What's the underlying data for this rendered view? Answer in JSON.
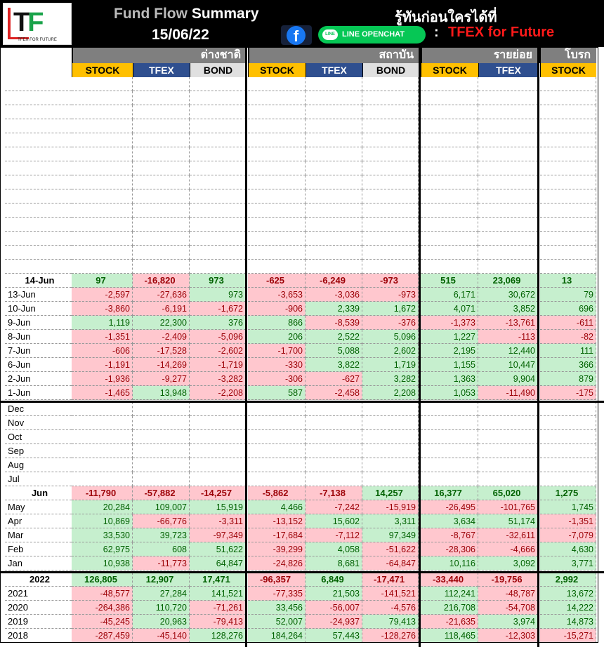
{
  "header": {
    "title_grey": "Fund Flow",
    "title_white": "Summary",
    "date": "15/06/22",
    "tagline": "รู้ทันก่อนใครได้ที่",
    "line_label": "LINE OPENCHAT",
    "colon": ":",
    "tfex_label": "TFEX for Future",
    "logo_text_t": "T",
    "logo_text_f": "F",
    "logo_tag": "TFEX FOR FUTURE",
    "fb_glyph": "f",
    "line_glyph": "LINE"
  },
  "groups": [
    "ต่างชาติ",
    "สถาบัน",
    "รายย่อย",
    "โบรก"
  ],
  "subheaders": [
    "STOCK",
    "TFEX",
    "BOND",
    "STOCK",
    "TFEX",
    "BOND",
    "STOCK",
    "TFEX",
    "STOCK"
  ],
  "blank_rows_top": 14,
  "daily_summary": {
    "label": "14-Jun",
    "values": [
      97,
      -16820,
      973,
      -625,
      -6249,
      -973,
      515,
      23069,
      13
    ]
  },
  "daily": [
    {
      "label": "13-Jun",
      "values": [
        -2597,
        -27636,
        973,
        -3653,
        -3036,
        -973,
        6171,
        30672,
        79
      ]
    },
    {
      "label": "10-Jun",
      "values": [
        -3860,
        -6191,
        -1672,
        -906,
        2339,
        1672,
        4071,
        3852,
        696
      ]
    },
    {
      "label": "9-Jun",
      "values": [
        1119,
        22300,
        376,
        866,
        -8539,
        -376,
        -1373,
        -13761,
        -611
      ]
    },
    {
      "label": "8-Jun",
      "values": [
        -1351,
        -2409,
        -5096,
        206,
        2522,
        5096,
        1227,
        -113,
        -82
      ]
    },
    {
      "label": "7-Jun",
      "values": [
        -606,
        -17528,
        -2602,
        -1700,
        5088,
        2602,
        2195,
        12440,
        111
      ]
    },
    {
      "label": "6-Jun",
      "values": [
        -1191,
        -14269,
        -1719,
        -330,
        3822,
        1719,
        1155,
        10447,
        366
      ]
    },
    {
      "label": "2-Jun",
      "values": [
        -1936,
        -9277,
        -3282,
        -306,
        -627,
        3282,
        1363,
        9904,
        879
      ]
    },
    {
      "label": "1-Jun",
      "values": [
        -1465,
        13948,
        -2208,
        587,
        -2458,
        2208,
        1053,
        -11490,
        -175
      ]
    }
  ],
  "empty_months": [
    "Dec",
    "Nov",
    "Oct",
    "Sep",
    "Aug",
    "Jul"
  ],
  "monthly_summary": {
    "label": "Jun",
    "values": [
      -11790,
      -57882,
      -14257,
      -5862,
      -7138,
      14257,
      16377,
      65020,
      1275
    ]
  },
  "monthly": [
    {
      "label": "May",
      "values": [
        20284,
        109007,
        15919,
        4466,
        -7242,
        -15919,
        -26495,
        -101765,
        1745
      ]
    },
    {
      "label": "Apr",
      "values": [
        10869,
        -66776,
        -3311,
        -13152,
        15602,
        3311,
        3634,
        51174,
        -1351
      ]
    },
    {
      "label": "Mar",
      "values": [
        33530,
        39723,
        -97349,
        -17684,
        -7112,
        97349,
        -8767,
        -32611,
        -7079
      ]
    },
    {
      "label": "Feb",
      "values": [
        62975,
        608,
        51622,
        -39299,
        4058,
        -51622,
        -28306,
        -4666,
        4630
      ]
    },
    {
      "label": "Jan",
      "values": [
        10938,
        -11773,
        64847,
        -24826,
        8681,
        -64847,
        10116,
        3092,
        3771
      ]
    }
  ],
  "yearly_summary": {
    "label": "2022",
    "values": [
      126805,
      12907,
      17471,
      -96357,
      6849,
      -17471,
      -33440,
      -19756,
      2992
    ]
  },
  "yearly": [
    {
      "label": "2021",
      "values": [
        -48577,
        27284,
        141521,
        -77335,
        21503,
        -141521,
        112241,
        -48787,
        13672
      ]
    },
    {
      "label": "2020",
      "values": [
        -264386,
        110720,
        -71261,
        33456,
        -56007,
        -4576,
        216708,
        -54708,
        14222
      ]
    },
    {
      "label": "2019",
      "values": [
        -45245,
        20963,
        -79413,
        52007,
        -24937,
        79413,
        -21635,
        3974,
        14873
      ]
    },
    {
      "label": "2018",
      "values": [
        -287459,
        -45140,
        128276,
        184264,
        57443,
        -128276,
        118465,
        -12303,
        -15271
      ]
    }
  ],
  "colors": {
    "positive_bg": "#c6efce",
    "negative_bg": "#ffc7ce",
    "stock_hdr": "#ffc000",
    "tfex_hdr": "#2f4f8f",
    "bond_hdr": "#e0e0e0",
    "group_hdr": "#7f7f7f"
  }
}
